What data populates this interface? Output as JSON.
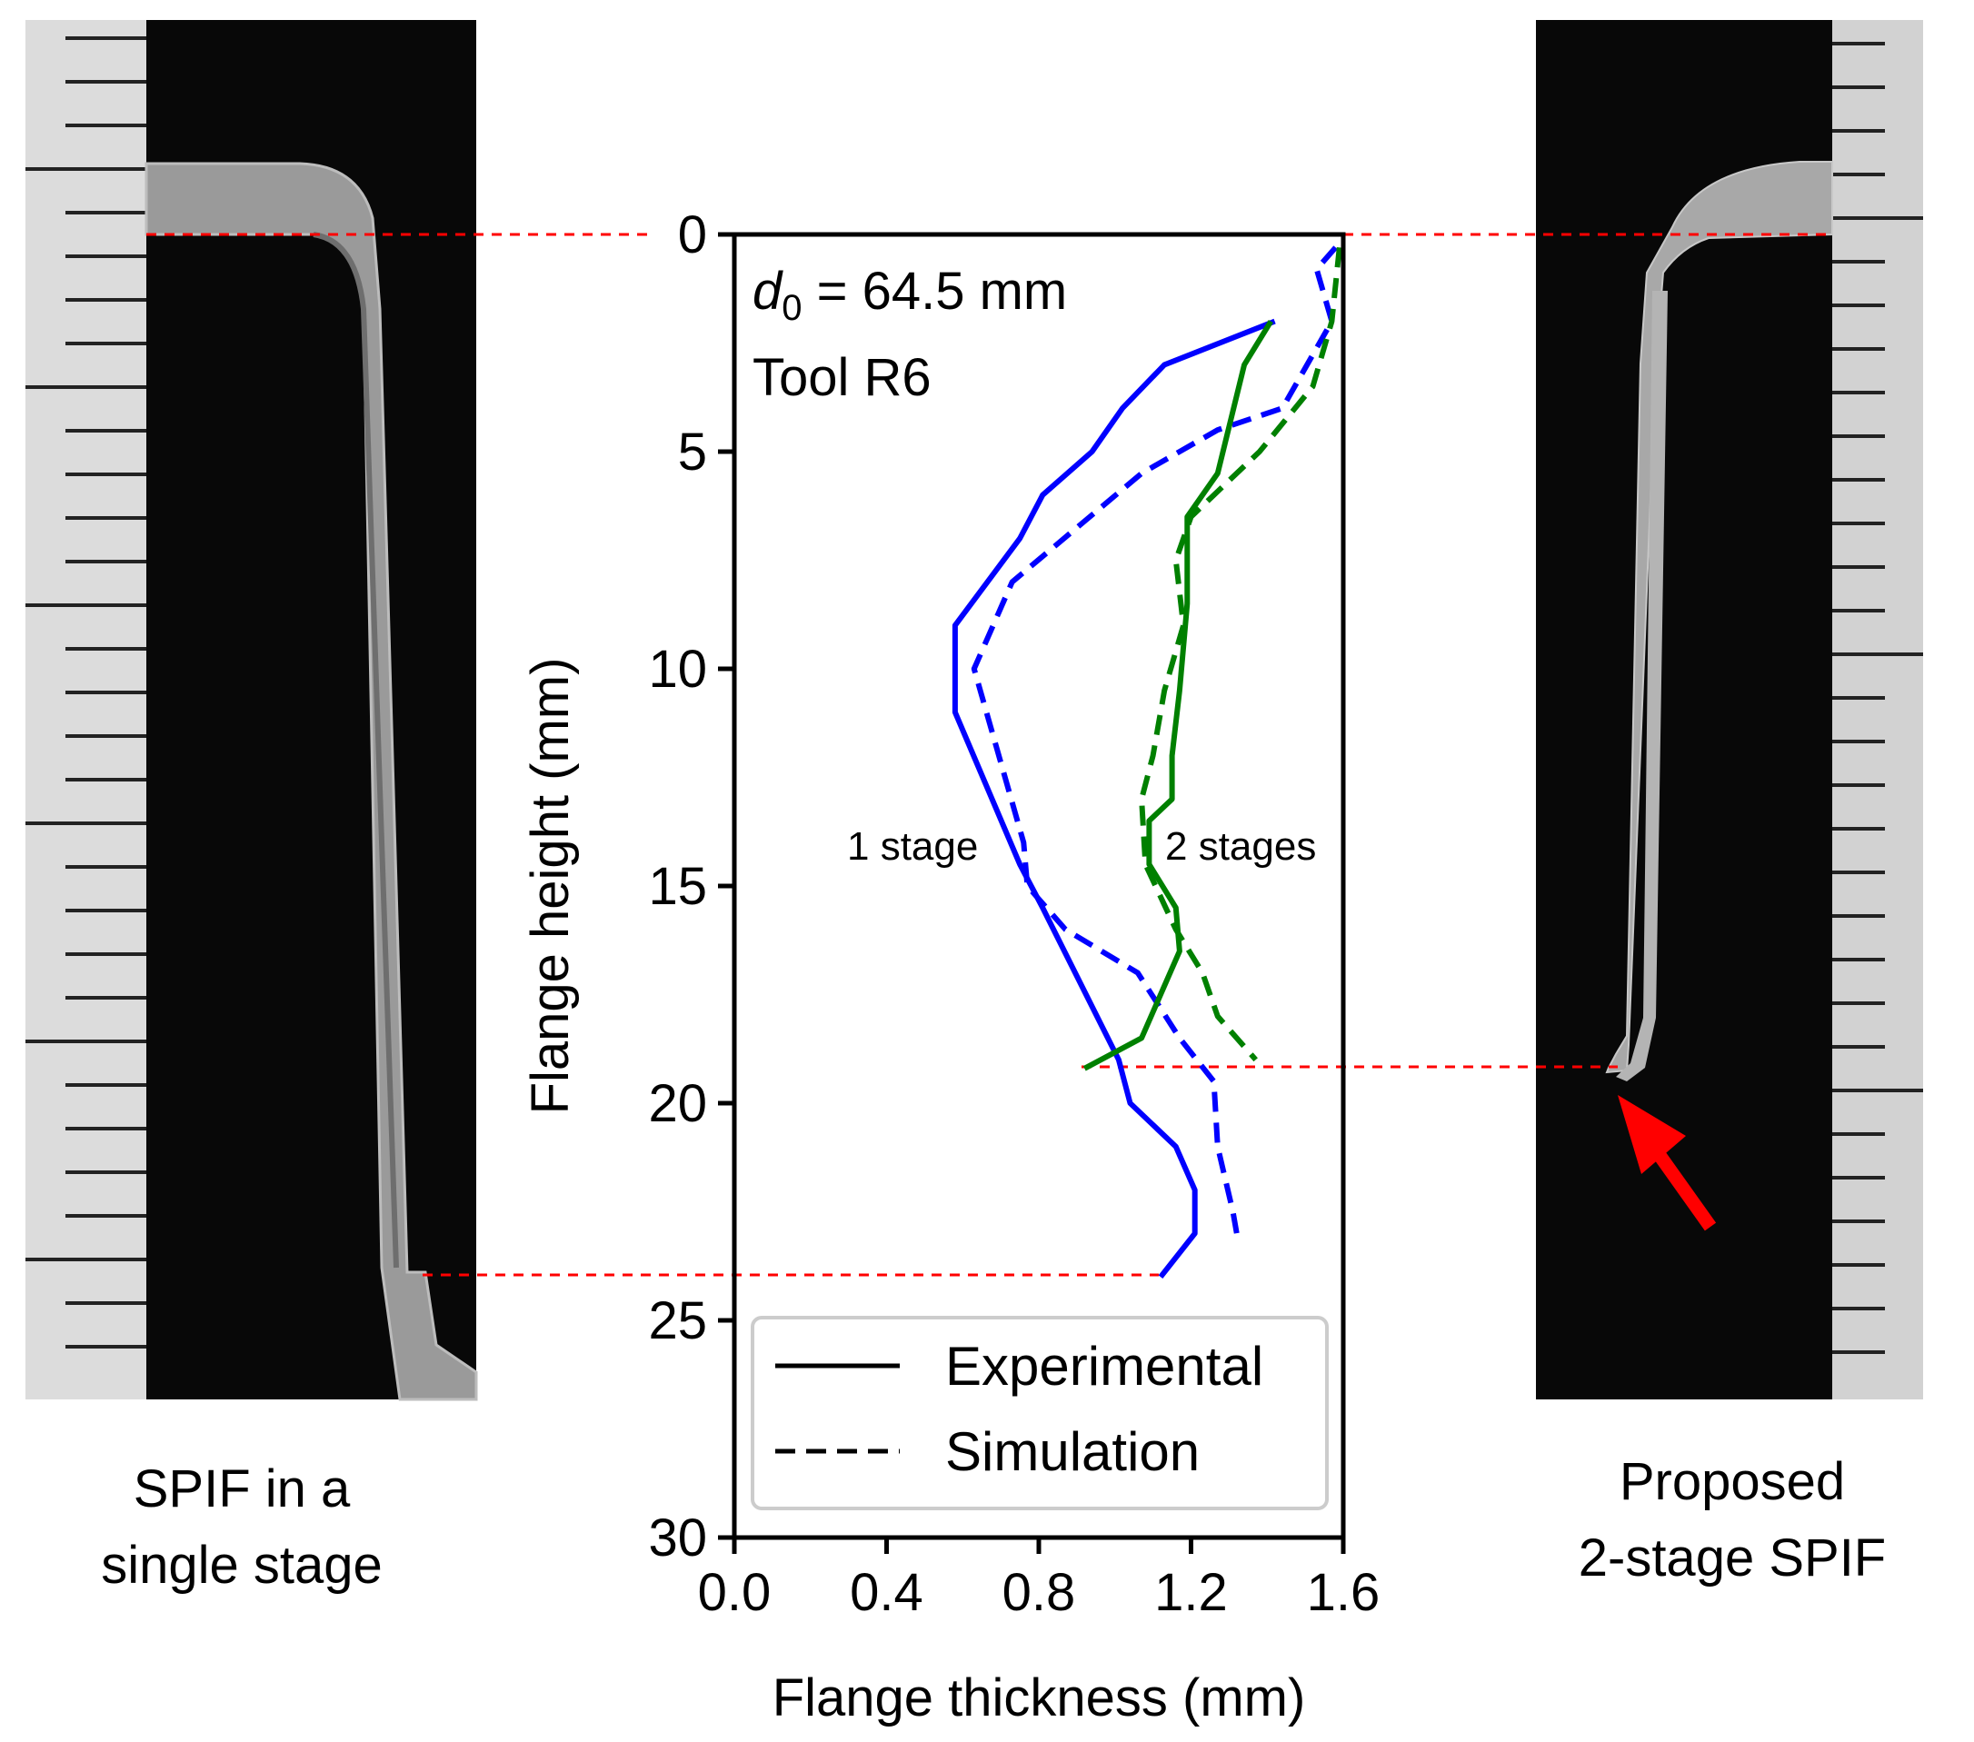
{
  "figure": {
    "left_photo_caption": [
      "SPIF in a",
      "single stage"
    ],
    "right_photo_caption": [
      "Proposed",
      "2-stage SPIF"
    ],
    "colors": {
      "background": "#ffffff",
      "photo_background": "#080808",
      "ruler": "#dcdcdc",
      "guide_line": "#ff0000",
      "arrow": "#ff0000",
      "one_stage": "#0000ff",
      "two_stages": "#008000"
    }
  },
  "chart_data": {
    "type": "line",
    "orientation": "y-inverted",
    "xlabel": "Flange thickness (mm)",
    "ylabel": "Flange height (mm)",
    "xlim": [
      0.0,
      1.6
    ],
    "ylim": [
      0,
      30
    ],
    "xticks": [
      0.0,
      0.4,
      0.8,
      1.2,
      1.6
    ],
    "xtick_labels": [
      "0.0",
      "0.4",
      "0.8",
      "1.2",
      "1.6"
    ],
    "yticks": [
      0,
      5,
      10,
      15,
      20,
      25,
      30
    ],
    "ytick_labels": [
      "0",
      "5",
      "10",
      "15",
      "20",
      "25",
      "30"
    ],
    "annotation_symbol": "d",
    "annotation_subscript": "0",
    "annotation_value": " = 64.5 mm",
    "annotation_tool": "Tool R6",
    "label_one_stage": "1 stage",
    "label_two_stages": "2 stages",
    "legend": {
      "placement": "lower-right",
      "entries": [
        {
          "label": "Experimental",
          "style": "solid"
        },
        {
          "label": "Simulation",
          "style": "dashed"
        }
      ]
    },
    "series": [
      {
        "name": "1 stage - Experimental",
        "group": "one_stage",
        "style": "solid",
        "points": [
          [
            1.42,
            2.0
          ],
          [
            1.13,
            3.0
          ],
          [
            1.02,
            4.0
          ],
          [
            0.94,
            5.0
          ],
          [
            0.81,
            6.0
          ],
          [
            0.75,
            7.0
          ],
          [
            0.58,
            9.0
          ],
          [
            0.58,
            11.0
          ],
          [
            0.75,
            14.5
          ],
          [
            0.81,
            15.5
          ],
          [
            1.01,
            19.0
          ],
          [
            1.04,
            20.0
          ],
          [
            1.16,
            21.0
          ],
          [
            1.21,
            22.0
          ],
          [
            1.21,
            23.0
          ],
          [
            1.12,
            24.0
          ]
        ]
      },
      {
        "name": "1 stage - Simulation",
        "group": "one_stage",
        "style": "dashed",
        "points": [
          [
            1.58,
            0.3
          ],
          [
            1.53,
            0.8
          ],
          [
            1.57,
            2.0
          ],
          [
            1.44,
            4.0
          ],
          [
            1.27,
            4.5
          ],
          [
            1.07,
            5.5
          ],
          [
            0.73,
            8.0
          ],
          [
            0.63,
            10.0
          ],
          [
            0.76,
            14.0
          ],
          [
            0.77,
            15.0
          ],
          [
            0.87,
            16.0
          ],
          [
            1.06,
            17.0
          ],
          [
            1.17,
            18.5
          ],
          [
            1.26,
            19.5
          ],
          [
            1.27,
            21.0
          ],
          [
            1.31,
            22.5
          ],
          [
            1.32,
            23.0
          ]
        ]
      },
      {
        "name": "2 stages - Experimental",
        "group": "two_stages",
        "style": "solid",
        "points": [
          [
            1.41,
            2.0
          ],
          [
            1.34,
            3.0
          ],
          [
            1.27,
            5.5
          ],
          [
            1.19,
            6.5
          ],
          [
            1.19,
            8.5
          ],
          [
            1.17,
            10.5
          ],
          [
            1.15,
            12.0
          ],
          [
            1.15,
            13.0
          ],
          [
            1.09,
            13.5
          ],
          [
            1.09,
            14.5
          ],
          [
            1.16,
            15.5
          ],
          [
            1.17,
            16.5
          ],
          [
            1.07,
            18.5
          ],
          [
            0.92,
            19.2
          ]
        ]
      },
      {
        "name": "2 stages - Simulation",
        "group": "two_stages",
        "style": "dashed",
        "points": [
          [
            1.59,
            0.3
          ],
          [
            1.57,
            2.0
          ],
          [
            1.52,
            3.5
          ],
          [
            1.38,
            5.0
          ],
          [
            1.26,
            6.0
          ],
          [
            1.2,
            6.5
          ],
          [
            1.16,
            7.5
          ],
          [
            1.18,
            9.0
          ],
          [
            1.13,
            10.5
          ],
          [
            1.1,
            12.0
          ],
          [
            1.07,
            13.0
          ],
          [
            1.08,
            14.5
          ],
          [
            1.16,
            16.0
          ],
          [
            1.23,
            17.0
          ],
          [
            1.27,
            18.0
          ],
          [
            1.37,
            19.0
          ]
        ]
      }
    ]
  }
}
